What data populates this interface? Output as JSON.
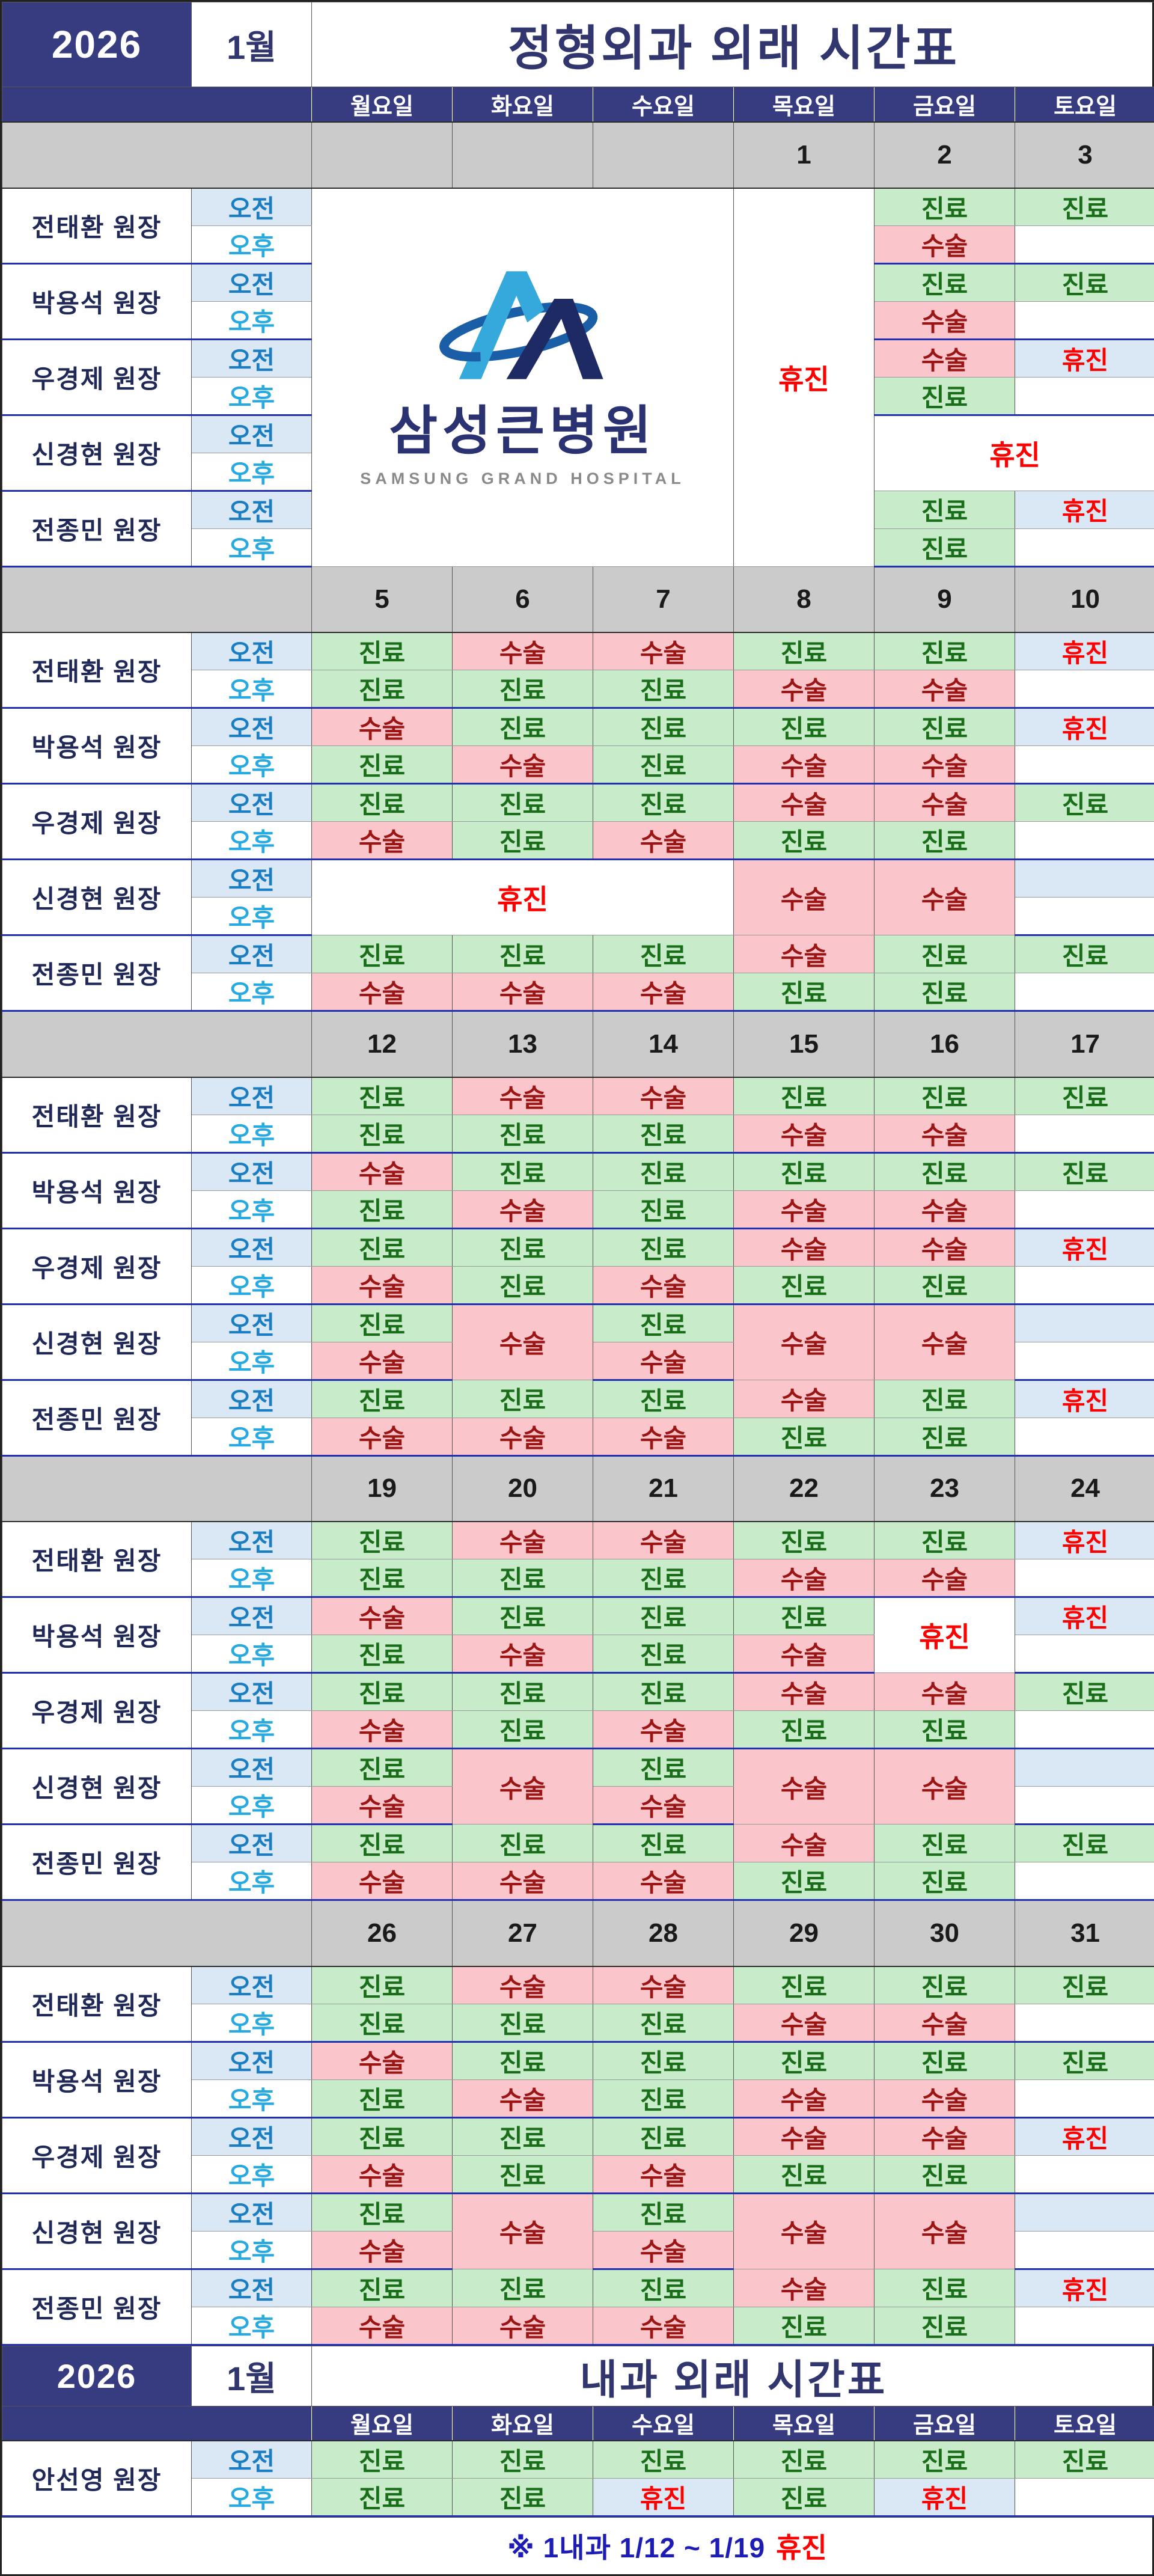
{
  "header": {
    "year": "2026",
    "month": "1월",
    "title": "정형외과 외래 시간표"
  },
  "internal_header": {
    "year": "2026",
    "month": "1월",
    "title": "내과 외래 시간표"
  },
  "days": [
    "월요일",
    "화요일",
    "수요일",
    "목요일",
    "금요일",
    "토요일"
  ],
  "session": {
    "am": "오전",
    "pm": "오후"
  },
  "logo": {
    "kr": "삼성큰병원",
    "en": "SAMSUNG GRAND HOSPITAL"
  },
  "cell_labels": {
    "J": "진료",
    "S": "수술",
    "H": "휴진"
  },
  "doctors": [
    "전태환 원장",
    "박용석 원장",
    "우경제 원장",
    "신경현 원장",
    "전종민 원장"
  ],
  "internal_doctor": "안선영 원장",
  "footnote": {
    "prefix": "※ 1내과  1/12 ~ 1/19",
    "highlight": "휴진"
  },
  "colors": {
    "navy": "#373c80",
    "sep": "#2030b0",
    "green-bg": "#c8ecca",
    "green-fg": "#1a6e1a",
    "pink-bg": "#fbc6cb",
    "pink-fg": "#9c1515",
    "blue-bg": "#dae7f5",
    "red": "#ff0000",
    "sat": "#2e79c4",
    "date-bg": "#cbcbcb",
    "name-fg": "#1f2857",
    "title-fg": "#32366f",
    "am-fg": "#1b7ec3",
    "pm-fg": "#27a9e1",
    "footnote-fg": "#1d1db5",
    "logo-light": "#35a8dc",
    "logo-navy": "#1e2a63",
    "logo-ring": "#1b5ea8",
    "logo-kr": "#2a3272",
    "logo-en": "#8a8a8a"
  },
  "ortho": {
    "weeks": [
      {
        "dates": [
          {
            "t": ""
          },
          {
            "t": ""
          },
          {
            "t": ""
          },
          {
            "t": "1",
            "c": "red"
          },
          {
            "t": "2"
          },
          {
            "t": "3",
            "c": "sat"
          }
        ],
        "rows": [
          {
            "am": [
              {
                "c": "LOGO",
                "cs": 3,
                "rs": 10
              },
              null,
              null,
              {
                "c": "HW",
                "rs": 10
              },
              "J",
              "J"
            ],
            "pm": [
              null,
              null,
              null,
              null,
              "S",
              "E"
            ]
          },
          {
            "am": [
              null,
              null,
              null,
              null,
              "J",
              "J"
            ],
            "pm": [
              null,
              null,
              null,
              null,
              "S",
              "E"
            ]
          },
          {
            "am": [
              null,
              null,
              null,
              null,
              "S",
              "HB"
            ],
            "pm": [
              null,
              null,
              null,
              null,
              "J",
              "E"
            ]
          },
          {
            "am": [
              null,
              null,
              null,
              null,
              {
                "c": "HW",
                "cs": 2,
                "rs": 2
              },
              null
            ],
            "pm": [
              null,
              null,
              null,
              null,
              null,
              null
            ]
          },
          {
            "am": [
              null,
              null,
              null,
              null,
              "J",
              "HB"
            ],
            "pm": [
              null,
              null,
              null,
              null,
              "J",
              "E"
            ]
          }
        ]
      },
      {
        "dates": [
          {
            "t": "5"
          },
          {
            "t": "6"
          },
          {
            "t": "7"
          },
          {
            "t": "8"
          },
          {
            "t": "9"
          },
          {
            "t": "10",
            "c": "sat"
          }
        ],
        "rows": [
          {
            "am": [
              "J",
              "S",
              "S",
              "J",
              "J",
              "HB"
            ],
            "pm": [
              "J",
              "J",
              "J",
              "S",
              "S",
              "E"
            ]
          },
          {
            "am": [
              "S",
              "J",
              "J",
              "J",
              "J",
              "HB"
            ],
            "pm": [
              "J",
              "S",
              "J",
              "S",
              "S",
              "E"
            ]
          },
          {
            "am": [
              "J",
              "J",
              "J",
              "S",
              "S",
              "J"
            ],
            "pm": [
              "S",
              "J",
              "S",
              "J",
              "J",
              "E"
            ]
          },
          {
            "am": [
              {
                "c": "HW",
                "cs": 3,
                "rs": 2
              },
              null,
              null,
              {
                "c": "S",
                "rs": 2
              },
              {
                "c": "S",
                "rs": 2
              },
              "EB"
            ],
            "pm": [
              null,
              null,
              null,
              null,
              null,
              "E"
            ]
          },
          {
            "am": [
              "J",
              "J",
              "J",
              "S",
              "J",
              "J"
            ],
            "pm": [
              "S",
              "S",
              "S",
              "J",
              "J",
              "E"
            ]
          }
        ]
      },
      {
        "dates": [
          {
            "t": "12"
          },
          {
            "t": "13"
          },
          {
            "t": "14"
          },
          {
            "t": "15"
          },
          {
            "t": "16"
          },
          {
            "t": "17",
            "c": "sat"
          }
        ],
        "rows": [
          {
            "am": [
              "J",
              "S",
              "S",
              "J",
              "J",
              "J"
            ],
            "pm": [
              "J",
              "J",
              "J",
              "S",
              "S",
              "E"
            ]
          },
          {
            "am": [
              "S",
              "J",
              "J",
              "J",
              "J",
              "J"
            ],
            "pm": [
              "J",
              "S",
              "J",
              "S",
              "S",
              "E"
            ]
          },
          {
            "am": [
              "J",
              "J",
              "J",
              "S",
              "S",
              "HB"
            ],
            "pm": [
              "S",
              "J",
              "S",
              "J",
              "J",
              "E"
            ]
          },
          {
            "am": [
              "J",
              {
                "c": "S",
                "rs": 2
              },
              "J",
              {
                "c": "S",
                "rs": 2
              },
              {
                "c": "S",
                "rs": 2
              },
              "EB"
            ],
            "pm": [
              "S",
              null,
              "S",
              null,
              null,
              "E"
            ]
          },
          {
            "am": [
              "J",
              "J",
              "J",
              "S",
              "J",
              "HB"
            ],
            "pm": [
              "S",
              "S",
              "S",
              "J",
              "J",
              "E"
            ]
          }
        ]
      },
      {
        "dates": [
          {
            "t": "19"
          },
          {
            "t": "20"
          },
          {
            "t": "21"
          },
          {
            "t": "22"
          },
          {
            "t": "23"
          },
          {
            "t": "24",
            "c": "sat"
          }
        ],
        "rows": [
          {
            "am": [
              "J",
              "S",
              "S",
              "J",
              "J",
              "HB"
            ],
            "pm": [
              "J",
              "J",
              "J",
              "S",
              "S",
              "E"
            ]
          },
          {
            "am": [
              "S",
              "J",
              "J",
              "J",
              {
                "c": "HW",
                "rs": 2
              },
              "HB"
            ],
            "pm": [
              "J",
              "S",
              "J",
              "S",
              null,
              "E"
            ]
          },
          {
            "am": [
              "J",
              "J",
              "J",
              "S",
              "S",
              "J"
            ],
            "pm": [
              "S",
              "J",
              "S",
              "J",
              "J",
              "E"
            ]
          },
          {
            "am": [
              "J",
              {
                "c": "S",
                "rs": 2
              },
              "J",
              {
                "c": "S",
                "rs": 2
              },
              {
                "c": "S",
                "rs": 2
              },
              "EB"
            ],
            "pm": [
              "S",
              null,
              "S",
              null,
              null,
              "E"
            ]
          },
          {
            "am": [
              "J",
              "J",
              "J",
              "S",
              "J",
              "J"
            ],
            "pm": [
              "S",
              "S",
              "S",
              "J",
              "J",
              "E"
            ]
          }
        ]
      },
      {
        "dates": [
          {
            "t": "26"
          },
          {
            "t": "27"
          },
          {
            "t": "28"
          },
          {
            "t": "29"
          },
          {
            "t": "30"
          },
          {
            "t": "31",
            "c": "sat"
          }
        ],
        "rows": [
          {
            "am": [
              "J",
              "S",
              "S",
              "J",
              "J",
              "J"
            ],
            "pm": [
              "J",
              "J",
              "J",
              "S",
              "S",
              "E"
            ]
          },
          {
            "am": [
              "S",
              "J",
              "J",
              "J",
              "J",
              "J"
            ],
            "pm": [
              "J",
              "S",
              "J",
              "S",
              "S",
              "E"
            ]
          },
          {
            "am": [
              "J",
              "J",
              "J",
              "S",
              "S",
              "HB"
            ],
            "pm": [
              "S",
              "J",
              "S",
              "J",
              "J",
              "E"
            ]
          },
          {
            "am": [
              "J",
              {
                "c": "S",
                "rs": 2
              },
              "J",
              {
                "c": "S",
                "rs": 2
              },
              {
                "c": "S",
                "rs": 2
              },
              "EB"
            ],
            "pm": [
              "S",
              null,
              "S",
              null,
              null,
              "E"
            ]
          },
          {
            "am": [
              "J",
              "J",
              "J",
              "S",
              "J",
              "HB"
            ],
            "pm": [
              "S",
              "S",
              "S",
              "J",
              "J",
              "E"
            ]
          }
        ]
      }
    ]
  },
  "internal": {
    "rows": [
      {
        "am": [
          "J",
          "J",
          "J",
          "J",
          "J",
          "J"
        ],
        "pm": [
          "J",
          "J",
          "HB",
          "J",
          "HB",
          "E"
        ]
      }
    ]
  }
}
